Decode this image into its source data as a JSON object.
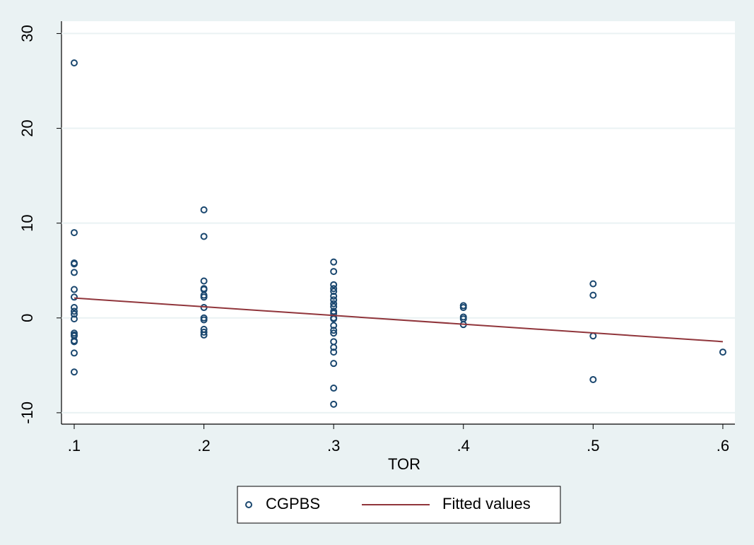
{
  "chart_data": {
    "type": "scatter",
    "x_label": "TOR",
    "xlim": [
      0.0902,
      0.6093
    ],
    "ylim": [
      -11.2,
      31.3
    ],
    "xticks": [
      {
        "value": 0.1,
        "label": ".1"
      },
      {
        "value": 0.2,
        "label": ".2"
      },
      {
        "value": 0.3,
        "label": ".3"
      },
      {
        "value": 0.4,
        "label": ".4"
      },
      {
        "value": 0.5,
        "label": ".5"
      },
      {
        "value": 0.6,
        "label": ".6"
      }
    ],
    "yticks": [
      -10,
      0,
      10,
      20,
      30
    ],
    "grid": true,
    "legend": "bottom",
    "series": [
      {
        "name": "CGPBS",
        "type": "scatter",
        "color": "#1a476f",
        "x": [
          0.1,
          0.1,
          0.1,
          0.1,
          0.1,
          0.1,
          0.1,
          0.1,
          0.1,
          0.1,
          0.1,
          0.1,
          0.1,
          0.1,
          0.1,
          0.1,
          0.1,
          0.1,
          0.2,
          0.2,
          0.2,
          0.2,
          0.2,
          0.2,
          0.2,
          0.2,
          0.2,
          0.2,
          0.2,
          0.2,
          0.2,
          0.3,
          0.3,
          0.3,
          0.3,
          0.3,
          0.3,
          0.3,
          0.3,
          0.3,
          0.3,
          0.3,
          0.3,
          0.3,
          0.3,
          0.3,
          0.3,
          0.3,
          0.3,
          0.3,
          0.3,
          0.3,
          0.3,
          0.4,
          0.4,
          0.4,
          0.4,
          0.4,
          0.5,
          0.5,
          0.5,
          0.5,
          0.6
        ],
        "values": [
          26.9,
          9.0,
          5.8,
          5.7,
          4.8,
          3.0,
          2.2,
          1.1,
          0.7,
          0.4,
          -0.1,
          -1.6,
          -1.8,
          -2.4,
          -2.5,
          -3.7,
          -5.7,
          -1.9,
          11.4,
          8.6,
          3.9,
          3.1,
          3.0,
          2.4,
          2.2,
          1.1,
          0.0,
          -0.2,
          -1.2,
          -1.5,
          -1.8,
          5.9,
          4.9,
          3.5,
          3.1,
          2.8,
          2.3,
          1.9,
          1.5,
          1.2,
          0.7,
          0.5,
          0.0,
          -0.1,
          -0.8,
          -1.3,
          -1.6,
          -2.5,
          -3.1,
          -3.6,
          -4.8,
          -7.4,
          -9.1,
          1.3,
          1.1,
          0.1,
          -0.1,
          -0.7,
          3.6,
          2.4,
          -1.9,
          -6.5,
          -3.6
        ]
      },
      {
        "name": "Fitted values",
        "type": "line",
        "color": "#90353b",
        "x": [
          0.1,
          0.6
        ],
        "values": [
          2.1,
          -2.5
        ]
      }
    ]
  }
}
